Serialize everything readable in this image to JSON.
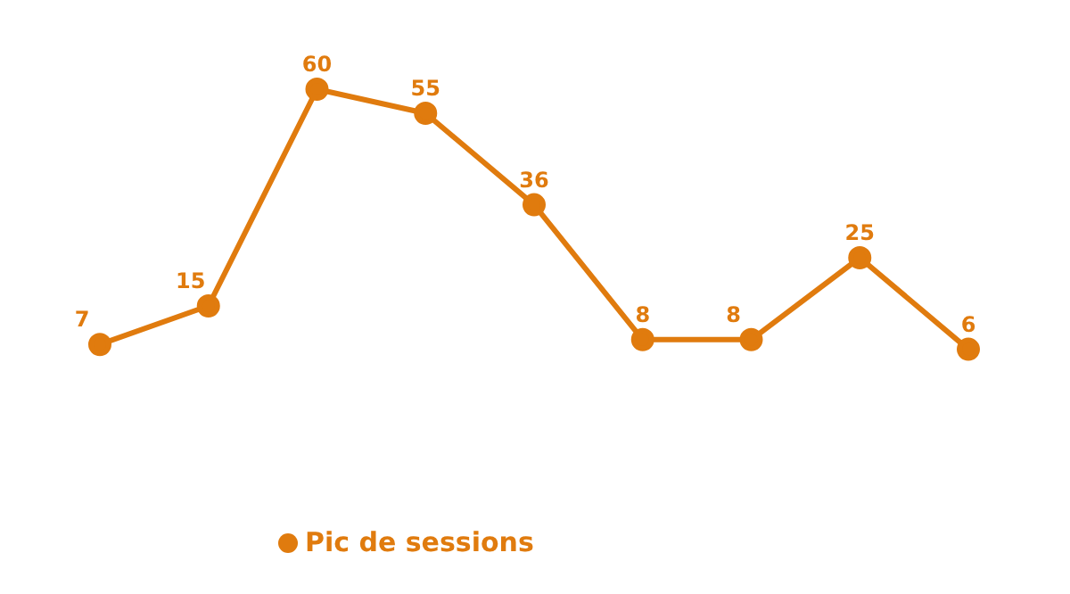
{
  "chart_data": {
    "type": "line",
    "categories": [
      null,
      null,
      null,
      null,
      null,
      null,
      null,
      null,
      null
    ],
    "series": [
      {
        "name": "Pic de sessions",
        "color": "#e07b0e",
        "values": [
          7,
          15,
          60,
          55,
          36,
          8,
          8,
          25,
          6
        ]
      }
    ],
    "data_labels": true,
    "marker": "circle",
    "legend": "bottom left",
    "grid": false,
    "tick_labels": false
  }
}
